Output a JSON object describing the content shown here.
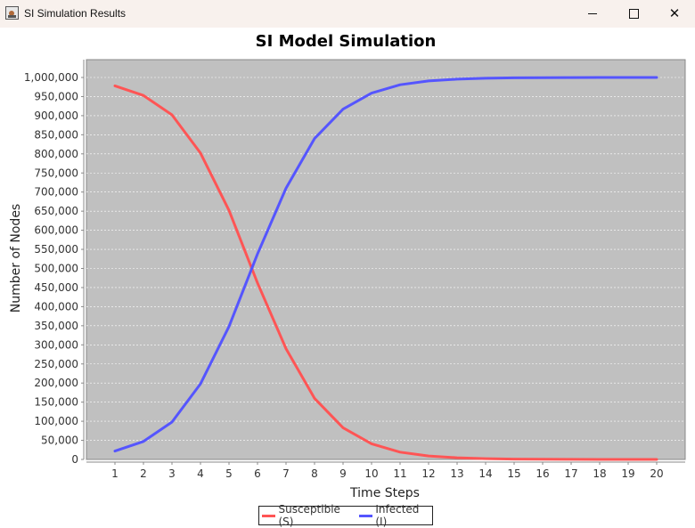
{
  "window": {
    "title": "SI Simulation Results",
    "controls": [
      "minimize",
      "maximize",
      "close"
    ]
  },
  "chart_data": {
    "type": "line",
    "title": "SI Model Simulation",
    "xlabel": "Time Steps",
    "ylabel": "Number of Nodes",
    "x": [
      1,
      2,
      3,
      4,
      5,
      6,
      7,
      8,
      9,
      10,
      11,
      12,
      13,
      14,
      15,
      16,
      17,
      18,
      19,
      20
    ],
    "series": [
      {
        "name": "Susceptible (S)",
        "color": "#ff5555",
        "values": [
          978000,
          953000,
          902000,
          802000,
          652000,
          462000,
          290000,
          160000,
          83000,
          41000,
          19000,
          9000,
          4500,
          2000,
          1000,
          500,
          200,
          100,
          50,
          20
        ]
      },
      {
        "name": "Infected (I)",
        "color": "#5555ff",
        "values": [
          22000,
          47000,
          98000,
          198000,
          348000,
          538000,
          710000,
          840000,
          917000,
          959000,
          981000,
          991000,
          995500,
          998000,
          999000,
          999500,
          999800,
          999900,
          999950,
          999980
        ]
      }
    ],
    "ylim": [
      0,
      1000000
    ],
    "xlim": [
      0,
      21
    ],
    "ytick_step": 50000,
    "grid": true,
    "plot_background": "#c0c0c0",
    "legend_position": "bottom-center"
  }
}
